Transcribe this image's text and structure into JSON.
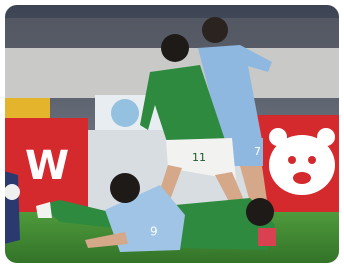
{
  "image": {
    "board_text": "W",
    "jersey_numbers": [
      "11",
      "7",
      "9"
    ]
  }
}
